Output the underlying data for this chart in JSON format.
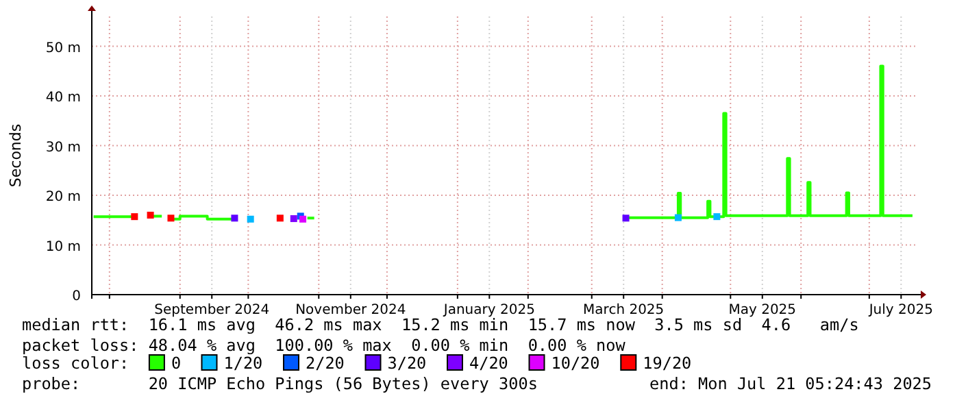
{
  "chart_data": {
    "type": "step",
    "ylabel": "Seconds",
    "xlim": [
      "2024-07-24T05:24",
      "2025-07-21T05:24"
    ],
    "xticks": [
      {
        "value": "2024-08-01",
        "label": null
      },
      {
        "value": "2024-09-01",
        "label": null
      },
      {
        "value": "2024-09-15",
        "label": "September 2024"
      },
      {
        "value": "2024-10-01",
        "label": null
      },
      {
        "value": "2024-11-01",
        "label": null
      },
      {
        "value": "2024-11-15",
        "label": "November 2024"
      },
      {
        "value": "2024-12-01",
        "label": null
      },
      {
        "value": "2025-01-01",
        "label": null
      },
      {
        "value": "2025-01-15",
        "label": "January 2025"
      },
      {
        "value": "2025-02-01",
        "label": null
      },
      {
        "value": "2025-03-01",
        "label": null
      },
      {
        "value": "2025-03-15",
        "label": "March 2025"
      },
      {
        "value": "2025-04-01",
        "label": null
      },
      {
        "value": "2025-05-01",
        "label": null
      },
      {
        "value": "2025-05-15",
        "label": "May 2025"
      },
      {
        "value": "2025-06-01",
        "label": null
      },
      {
        "value": "2025-07-01",
        "label": null
      },
      {
        "value": "2025-07-15",
        "label": "July 2025"
      }
    ],
    "ylim": [
      0,
      56
    ],
    "yticks": [
      0,
      {
        "value": 10,
        "label": "10 m"
      },
      {
        "value": 20,
        "label": "20 m"
      },
      {
        "value": 30,
        "label": "30 m"
      },
      {
        "value": 40,
        "label": "40 m"
      },
      {
        "value": 50,
        "label": "50 m"
      }
    ],
    "grid": true,
    "legend": "bottom",
    "legend_title": "loss color:",
    "series": [
      {
        "name": "0",
        "color": "#26ff00",
        "x": [
          "2024-07-25",
          "2024-08-12",
          "2024-08-16",
          "2024-08-19",
          "2024-08-24",
          "2024-08-26",
          "2024-08-28",
          "2024-09-01",
          "2024-09-13",
          "2024-09-25",
          "2024-09-27",
          "2024-10-27",
          "2024-10-30",
          "2024-11-01",
          "2025-03-16",
          "2025-04-08",
          "2025-04-09",
          "2025-04-21",
          "2025-04-22",
          "2025-04-28",
          "2025-04-29",
          "2025-05-26",
          "2025-05-27",
          "2025-06-04",
          "2025-06-05",
          "2025-06-21",
          "2025-06-22",
          "2025-07-06",
          "2025-07-07",
          "2025-07-20"
        ],
        "values": [
          15.7,
          15.7,
          null,
          15.8,
          15.8,
          null,
          15.2,
          15.8,
          15.2,
          15.2,
          null,
          15.4,
          15.4,
          null,
          15.5,
          20.4,
          15.5,
          18.8,
          15.7,
          36.5,
          15.9,
          27.4,
          15.9,
          22.6,
          15.9,
          20.5,
          15.9,
          46,
          15.9,
          15.9
        ]
      },
      {
        "name": "1/20",
        "type": "scatter",
        "marker": "square",
        "color": "#00b8ff",
        "x": [
          "2024-10-02",
          "2025-04-08",
          "2025-04-25"
        ],
        "values": [
          15.2,
          15.5,
          15.7
        ]
      },
      {
        "name": "2/20",
        "type": "scatter",
        "marker": "square",
        "color": "#0059ff",
        "x": [
          "2024-10-24"
        ],
        "values": [
          15.8
        ]
      },
      {
        "name": "3/20",
        "type": "scatter",
        "marker": "square",
        "color": "#5e00ff",
        "x": [
          "2024-09-25",
          "2025-03-16"
        ],
        "values": [
          15.4,
          15.4
        ]
      },
      {
        "name": "4/20",
        "type": "scatter",
        "marker": "square",
        "color": "#7e00ff",
        "x": [
          "2024-10-21"
        ],
        "values": [
          15.3
        ]
      },
      {
        "name": "10/20",
        "type": "scatter",
        "marker": "square",
        "color": "#dd00ff",
        "x": [
          "2024-10-25"
        ],
        "values": [
          15.2
        ]
      },
      {
        "name": "19/20",
        "type": "scatter",
        "marker": "square",
        "color": "#ff0000",
        "x": [
          "2024-08-12",
          "2024-08-19",
          "2024-08-28",
          "2024-10-15"
        ],
        "values": [
          15.7,
          16,
          15.4,
          15.4
        ]
      }
    ],
    "annotations": [
      "median rtt:  16.1 ms avg  46.2 ms max  15.2 ms min  15.7 ms now  3.5 ms sd  4.6   am/s",
      "packet loss: 48.04 % avg  100.00 % max  0.00 % min  0.00 % now",
      "probe:       20 ICMP Echo Pings (56 Bytes) every 300s",
      "end: Mon Jul 21 05:24:43 2025"
    ]
  }
}
